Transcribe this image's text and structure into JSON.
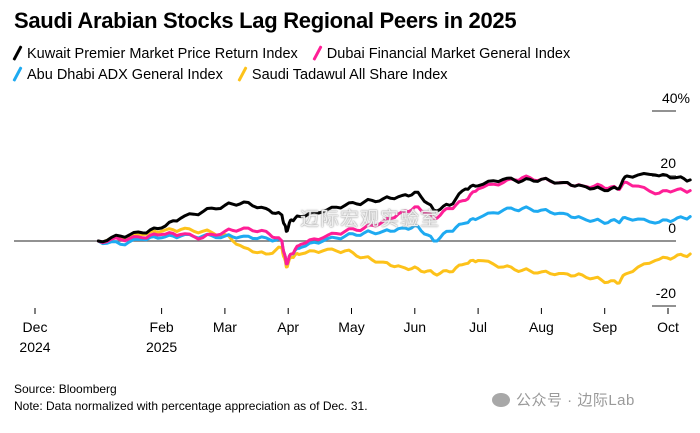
{
  "chart_data": {
    "type": "line",
    "title": "Saudi Arabian Stocks Lag Regional Peers in 2025",
    "xlabel": "",
    "ylabel": "",
    "y_unit": "%",
    "ylim": [
      -25,
      42
    ],
    "yticks": [
      {
        "value": 40,
        "label": "40%"
      },
      {
        "value": 20,
        "label": "20"
      },
      {
        "value": 0,
        "label": "0"
      },
      {
        "value": -20,
        "label": "-20"
      }
    ],
    "xticks": [
      {
        "month": 0,
        "line1": "Dec",
        "line2": "2024"
      },
      {
        "month": 2,
        "line1": "Feb",
        "line2": "2025"
      },
      {
        "month": 3,
        "line1": "Mar",
        "line2": ""
      },
      {
        "month": 4,
        "line1": "Apr",
        "line2": ""
      },
      {
        "month": 5,
        "line1": "May",
        "line2": ""
      },
      {
        "month": 6,
        "line1": "Jun",
        "line2": ""
      },
      {
        "month": 7,
        "line1": "Jul",
        "line2": ""
      },
      {
        "month": 8,
        "line1": "Aug",
        "line2": ""
      },
      {
        "month": 9,
        "line1": "Sep",
        "line2": ""
      },
      {
        "month": 10,
        "line1": "Oct",
        "line2": ""
      }
    ],
    "x_note": "x measured in months since Dec 1, 2024 (series begin Dec 31, 2024)",
    "grid": false,
    "zero_line": true,
    "legend_position": "top-left",
    "x": [
      1.0,
      1.35,
      1.7,
      2.0,
      2.3,
      2.65,
      3.0,
      3.3,
      3.65,
      3.9,
      3.97,
      4.05,
      4.2,
      4.55,
      4.9,
      5.2,
      5.5,
      5.8,
      6.05,
      6.3,
      6.55,
      6.8,
      7.0,
      7.4,
      7.7,
      8.0,
      8.35,
      8.65,
      8.95,
      9.2,
      9.35,
      9.8,
      10.1,
      10.35
    ],
    "series": [
      {
        "name": "Kuwait Premier Market Price Return Index",
        "color": "#000000",
        "values": [
          0,
          1.5,
          2.5,
          4,
          7,
          9,
          11,
          12,
          10,
          8,
          3,
          6.5,
          7.5,
          9,
          11,
          12,
          13,
          14,
          15,
          9.5,
          11,
          16,
          17,
          19,
          18.5,
          19,
          18,
          17,
          16,
          16,
          20,
          20.3,
          19.4,
          18.8
        ]
      },
      {
        "name": "Dubai Financial Market General Index",
        "color": "#ff1e96",
        "values": [
          0,
          0.5,
          1,
          2,
          2,
          1,
          3,
          4,
          3,
          0,
          -7,
          -4,
          -1,
          1,
          3,
          4,
          6,
          9,
          10.5,
          7,
          10,
          12.5,
          16,
          18,
          19.5,
          19,
          18,
          17,
          17,
          16,
          18,
          14.5,
          15.5,
          15.5
        ]
      },
      {
        "name": "Abu Dhabi ADX General Index",
        "color": "#1eaaf1",
        "values": [
          0,
          -1,
          0.5,
          1,
          1.5,
          1.5,
          1.5,
          1.5,
          1,
          0,
          -7,
          -4,
          -2,
          0,
          1.5,
          2.5,
          3,
          4,
          4.5,
          0,
          3,
          5.5,
          7,
          9.5,
          10,
          9.5,
          8.5,
          7,
          6,
          6,
          7,
          5.5,
          6.5,
          7.5
        ]
      },
      {
        "name": "Saudi Tadawul All Share Index",
        "color": "#fdc21a",
        "values": [
          0,
          1,
          2,
          3,
          3.5,
          3,
          2,
          -2,
          -4,
          -2,
          -8,
          -5,
          -4,
          -3,
          -3,
          -5,
          -6.5,
          -8,
          -8.5,
          -10,
          -9.5,
          -7,
          -6,
          -8,
          -9,
          -9.5,
          -10,
          -10.5,
          -12,
          -13,
          -10,
          -6,
          -5,
          -4
        ]
      }
    ],
    "source": "Source: Bloomberg",
    "note": "Note: Data normalized with percentage appreciation as of Dec. 31."
  },
  "watermarks": {
    "center": "迈际宏观实验室",
    "wechat": "公众号 · 边际Lab"
  }
}
